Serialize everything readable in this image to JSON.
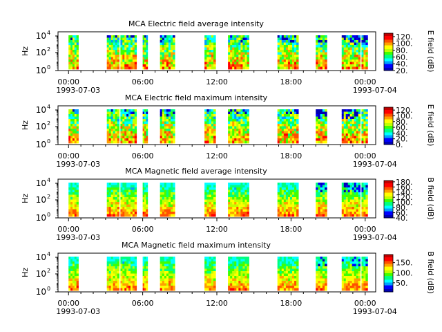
{
  "chart_data": [
    {
      "type": "heatmap",
      "title": "MCA  Electric field average intensity",
      "ylabel": "Hz",
      "cbar_label": "E field (dB)",
      "yticks": [
        "10^0",
        "10^2",
        "10^4"
      ],
      "xticks": [
        "00:00",
        "06:00",
        "12:00",
        "18:00",
        "00:00"
      ],
      "xtick_hours": [
        0,
        6,
        12,
        18,
        24
      ],
      "date_labels": [
        "1993-07-03",
        "1993-07-04"
      ],
      "cbar_range": [
        20,
        130
      ],
      "cbar_ticks": [
        20,
        40,
        60,
        80,
        100,
        120
      ],
      "cbar_tick_labels": [
        "20.",
        "40.",
        "60.",
        "80.",
        "100.",
        "120."
      ]
    },
    {
      "type": "heatmap",
      "title": "MCA  Electric field maximum intensity",
      "ylabel": "Hz",
      "cbar_label": "E field (dB)",
      "yticks": [
        "10^0",
        "10^2",
        "10^4"
      ],
      "xticks": [
        "00:00",
        "06:00",
        "12:00",
        "18:00",
        "00:00"
      ],
      "xtick_hours": [
        0,
        6,
        12,
        18,
        24
      ],
      "date_labels": [
        "1993-07-03",
        "1993-07-04"
      ],
      "cbar_range": [
        0,
        130
      ],
      "cbar_ticks": [
        0,
        20,
        40,
        60,
        80,
        100,
        120
      ],
      "cbar_tick_labels": [
        "0.",
        "20.",
        "40.",
        "60.",
        "80.",
        "100.",
        "120."
      ]
    },
    {
      "type": "heatmap",
      "title": "MCA  Magnetic field average intensity",
      "ylabel": "Hz",
      "cbar_label": "B field (dB)",
      "yticks": [
        "10^0",
        "10^2",
        "10^4"
      ],
      "xticks": [
        "00:00",
        "06:00",
        "12:00",
        "18:00",
        "00:00"
      ],
      "xtick_hours": [
        0,
        6,
        12,
        18,
        24
      ],
      "date_labels": [
        "1993-07-03",
        "1993-07-04"
      ],
      "cbar_range": [
        40,
        185
      ],
      "cbar_ticks": [
        40,
        60,
        80,
        100,
        120,
        140,
        160,
        180
      ],
      "cbar_tick_labels": [
        "40.",
        "60.",
        "80.",
        "100.",
        "120.",
        "140.",
        "160.",
        "180."
      ]
    },
    {
      "type": "heatmap",
      "title": "MCA  Magnetic field maximum intensity",
      "ylabel": "Hz",
      "cbar_label": "B field (dB)",
      "yticks": [
        "10^0",
        "10^2",
        "10^4"
      ],
      "xticks": [
        "00:00",
        "06:00",
        "12:00",
        "18:00",
        "00:00"
      ],
      "xtick_hours": [
        0,
        6,
        12,
        18,
        24
      ],
      "date_labels": [
        "1993-07-03",
        "1993-07-04"
      ],
      "cbar_range": [
        5,
        190
      ],
      "cbar_ticks": [
        50,
        100,
        150
      ],
      "cbar_tick_labels": [
        "50.",
        "100.",
        "150."
      ]
    }
  ],
  "data_segments_hours": [
    [
      0.0,
      0.8
    ],
    [
      3.1,
      4.1
    ],
    [
      4.2,
      5.5
    ],
    [
      6.0,
      6.4
    ],
    [
      7.4,
      8.6
    ],
    [
      11.0,
      11.9
    ],
    [
      12.9,
      14.6
    ],
    [
      16.9,
      18.6
    ],
    [
      20.0,
      20.9
    ],
    [
      22.1,
      23.6
    ],
    [
      23.7,
      24.2
    ]
  ],
  "colorscale": [
    "#0000b4",
    "#0000ff",
    "#00a0ff",
    "#00ffff",
    "#00ff80",
    "#40ff00",
    "#c0ff00",
    "#ffff00",
    "#ffa000",
    "#ff5000",
    "#ff0000",
    "#c00000"
  ]
}
